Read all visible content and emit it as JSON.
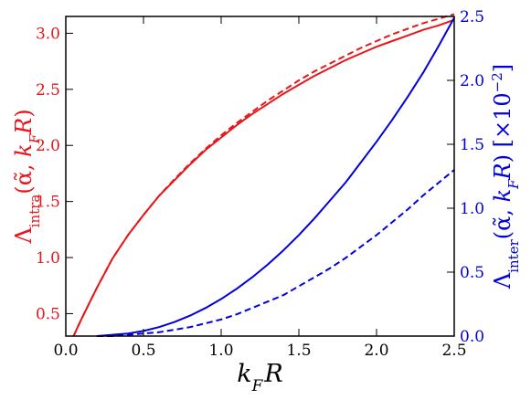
{
  "chart_data": {
    "type": "line",
    "title": "",
    "xlabel": "k_F R",
    "ylabel_left": "Λ_intra(α̃, k_F R)",
    "ylabel_right": "Λ_inter(α̃, k_F R) [×10^-2]",
    "xlim": [
      0.0,
      2.5
    ],
    "ylim_left": [
      0.3,
      3.15
    ],
    "ylim_right": [
      0.0,
      2.5
    ],
    "xticks": [
      "0.0",
      "0.5",
      "1.0",
      "1.5",
      "2.0",
      "2.5"
    ],
    "yticks_left": [
      "0.5",
      "1.0",
      "1.5",
      "2.0",
      "2.5",
      "3.0"
    ],
    "yticks_right": [
      "0.0",
      "0.5",
      "1.0",
      "1.5",
      "2.0",
      "2.5"
    ],
    "grid": false,
    "legend": "none",
    "colors": {
      "left_axis": "#e8161b",
      "right_axis": "#0000dd",
      "frame": "#000000"
    },
    "series": [
      {
        "axis": "left",
        "color": "#e8161b",
        "style": "solid",
        "x": [
          0.05,
          0.1,
          0.2,
          0.3,
          0.4,
          0.5,
          0.6,
          0.7,
          0.8,
          0.9,
          1.0,
          1.1,
          1.2,
          1.3,
          1.4,
          1.5,
          1.6,
          1.7,
          1.8,
          1.9,
          2.0,
          2.1,
          2.2,
          2.3,
          2.4,
          2.5
        ],
        "y": [
          0.3,
          0.45,
          0.73,
          0.99,
          1.2,
          1.38,
          1.55,
          1.69,
          1.83,
          1.96,
          2.07,
          2.18,
          2.28,
          2.37,
          2.46,
          2.54,
          2.62,
          2.69,
          2.76,
          2.82,
          2.88,
          2.93,
          2.98,
          3.03,
          3.07,
          3.12
        ]
      },
      {
        "axis": "left",
        "color": "#e8161b",
        "style": "dashed",
        "x": [
          0.05,
          0.1,
          0.2,
          0.3,
          0.4,
          0.5,
          0.6,
          0.7,
          0.8,
          0.9,
          1.0,
          1.1,
          1.2,
          1.3,
          1.4,
          1.5,
          1.6,
          1.7,
          1.8,
          1.9,
          2.0,
          2.1,
          2.2,
          2.3,
          2.4,
          2.5
        ],
        "y": [
          0.3,
          0.45,
          0.73,
          0.99,
          1.2,
          1.38,
          1.55,
          1.7,
          1.84,
          1.97,
          2.09,
          2.2,
          2.3,
          2.4,
          2.49,
          2.58,
          2.66,
          2.73,
          2.8,
          2.87,
          2.93,
          2.99,
          3.04,
          3.09,
          3.13,
          3.17
        ]
      },
      {
        "axis": "right",
        "color": "#0000dd",
        "style": "solid",
        "x": [
          0.2,
          0.3,
          0.4,
          0.5,
          0.6,
          0.7,
          0.8,
          0.9,
          1.0,
          1.1,
          1.2,
          1.3,
          1.4,
          1.5,
          1.6,
          1.7,
          1.8,
          1.9,
          2.0,
          2.1,
          2.2,
          2.3,
          2.4,
          2.5
        ],
        "y": [
          0.0,
          0.01,
          0.02,
          0.04,
          0.07,
          0.11,
          0.16,
          0.22,
          0.29,
          0.37,
          0.46,
          0.56,
          0.67,
          0.79,
          0.92,
          1.06,
          1.2,
          1.36,
          1.52,
          1.69,
          1.87,
          2.06,
          2.27,
          2.49
        ]
      },
      {
        "axis": "right",
        "color": "#0000dd",
        "style": "dashed",
        "x": [
          0.2,
          0.3,
          0.4,
          0.5,
          0.6,
          0.7,
          0.8,
          0.9,
          1.0,
          1.1,
          1.2,
          1.3,
          1.4,
          1.5,
          1.6,
          1.7,
          1.8,
          1.9,
          2.0,
          2.1,
          2.2,
          2.3,
          2.4,
          2.5
        ],
        "y": [
          0.0,
          0.0,
          0.01,
          0.02,
          0.03,
          0.05,
          0.07,
          0.1,
          0.13,
          0.17,
          0.22,
          0.27,
          0.32,
          0.39,
          0.46,
          0.53,
          0.61,
          0.7,
          0.79,
          0.89,
          0.99,
          1.1,
          1.2,
          1.3
        ]
      }
    ]
  }
}
